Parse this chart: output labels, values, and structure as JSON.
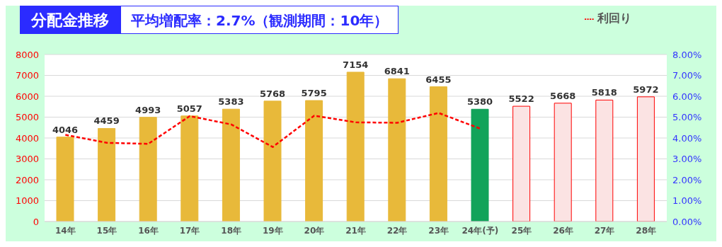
{
  "chart_data": {
    "type": "bar",
    "title": "分配金推移",
    "subtitle": "平均増配率：2.7%（観測期間：10年）",
    "categories": [
      "14年",
      "15年",
      "16年",
      "17年",
      "18年",
      "19年",
      "20年",
      "21年",
      "22年",
      "23年",
      "24年(予)",
      "25年",
      "26年",
      "27年",
      "28年"
    ],
    "series": [
      {
        "values": [
          4046,
          4459,
          4993,
          5057,
          5383,
          5768,
          5795,
          7154,
          6841,
          6455,
          5380,
          5522,
          5668,
          5818,
          5972
        ],
        "value_labels": [
          "4046",
          "4459",
          "4993",
          "5057",
          "5383",
          "5768",
          "5795",
          "7154",
          "6841",
          "6455",
          "5380",
          "5522",
          "5668",
          "5818",
          "5972"
        ],
        "colors": [
          "#e8b93a",
          "#e8b93a",
          "#e8b93a",
          "#e8b93a",
          "#e8b93a",
          "#e8b93a",
          "#e8b93a",
          "#e8b93a",
          "#e8b93a",
          "#e8b93a",
          "#12a35a",
          "#fbe3e3",
          "#fbe3e3",
          "#fbe3e3",
          "#fbe3e3"
        ]
      },
      {
        "type": "line",
        "name": "利回り",
        "axis": "y2",
        "color": "#ff0000",
        "line_style": "dashed",
        "marker": "none",
        "values": [
          4.15,
          3.77,
          3.72,
          5.05,
          4.65,
          3.57,
          5.07,
          4.75,
          4.73,
          5.2,
          4.45,
          null,
          null,
          null,
          null
        ]
      }
    ],
    "ylim": [
      0,
      8000
    ],
    "yticks": [
      0,
      1000,
      2000,
      3000,
      4000,
      5000,
      6000,
      7000,
      8000
    ],
    "y2lim": [
      0,
      8
    ],
    "y2ticks": [
      {
        "value": 0,
        "label": "0.00%"
      },
      {
        "value": 1,
        "label": "1.00%"
      },
      {
        "value": 2,
        "label": "2.00%"
      },
      {
        "value": 3,
        "label": "3.00%"
      },
      {
        "value": 4,
        "label": "4.00%"
      },
      {
        "value": 5,
        "label": "5.00%"
      },
      {
        "value": 6,
        "label": "6.00%"
      },
      {
        "value": 7,
        "label": "7.00%"
      },
      {
        "value": 8,
        "label": "8.00%"
      }
    ],
    "grid": "y",
    "legend": "top right"
  }
}
